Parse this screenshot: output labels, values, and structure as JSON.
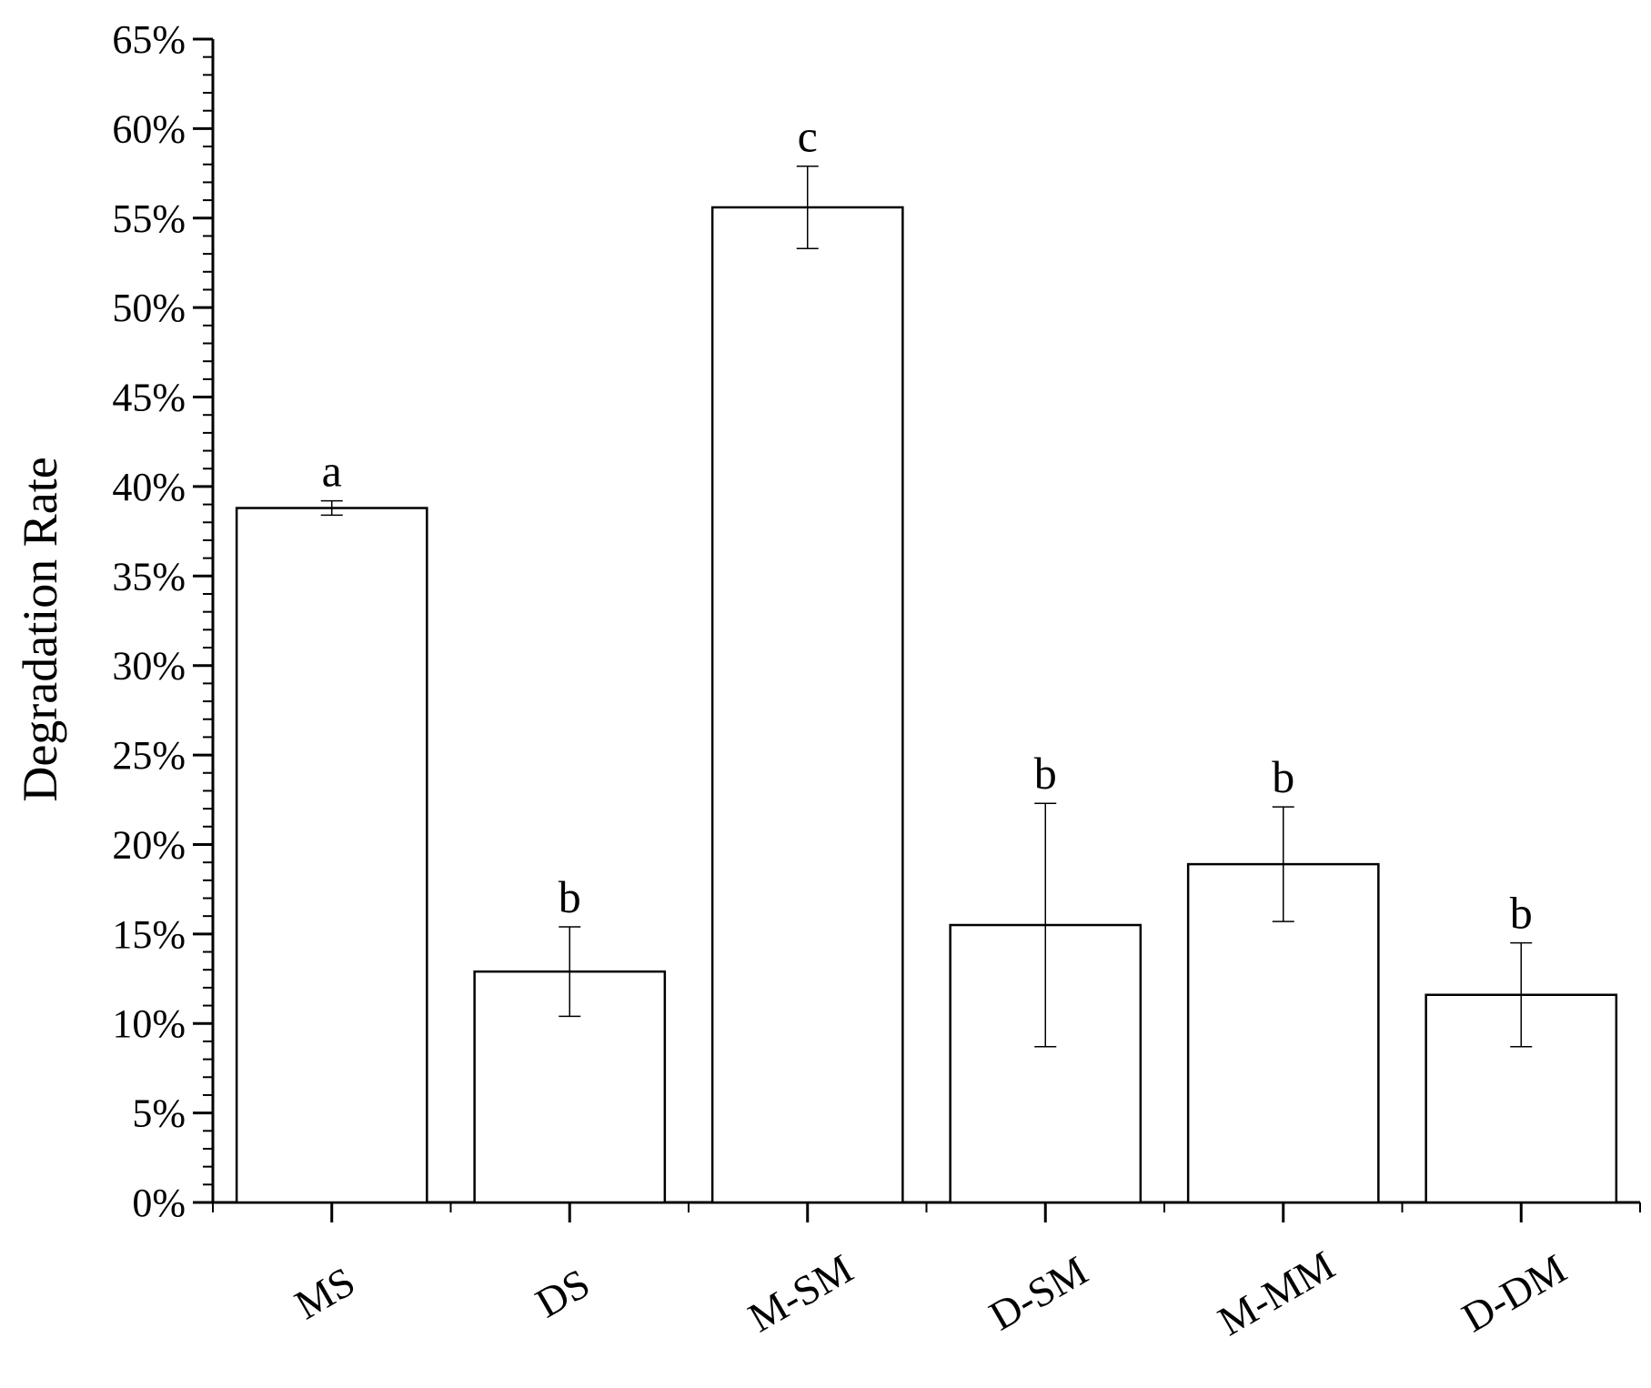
{
  "chart_data": {
    "type": "bar",
    "title": "",
    "xlabel": "",
    "ylabel": "Degradation Rate",
    "ylim": [
      0,
      65
    ],
    "y_ticks": [
      0,
      5,
      10,
      15,
      20,
      25,
      30,
      35,
      40,
      45,
      50,
      55,
      60,
      65
    ],
    "y_tick_labels": [
      "0%",
      "5%",
      "10%",
      "15%",
      "20%",
      "25%",
      "30%",
      "35%",
      "40%",
      "45%",
      "50%",
      "55%",
      "60%",
      "65%"
    ],
    "categories": [
      "MS",
      "DS",
      "M-SM",
      "D-SM",
      "M-MM",
      "D-DM"
    ],
    "values": [
      38.8,
      12.9,
      55.6,
      15.5,
      18.9,
      11.6
    ],
    "error_high": [
      39.2,
      15.4,
      57.9,
      22.3,
      22.1,
      14.5
    ],
    "error_low": [
      38.4,
      10.4,
      53.3,
      8.7,
      15.7,
      8.7
    ],
    "significance_letters": [
      "a",
      "b",
      "c",
      "b",
      "b",
      "b"
    ],
    "grid": false,
    "legend": "none",
    "bar_fill": "#ffffff",
    "bar_stroke": "#000000"
  }
}
